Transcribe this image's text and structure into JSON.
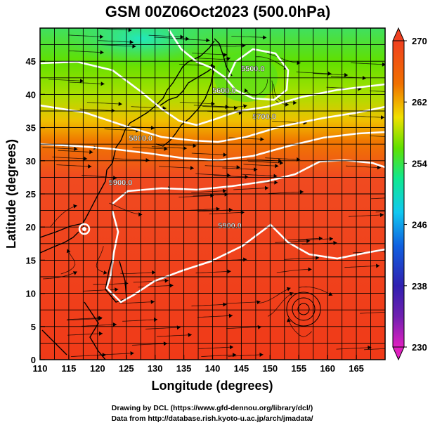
{
  "chart_data": {
    "type": "heatmap",
    "title": "GSM 00Z06Oct2023 (500.0hPa)",
    "xlabel": "Longitude (degrees)",
    "ylabel": "Latitude  (degrees)",
    "xlim": [
      110,
      170
    ],
    "ylim": [
      0,
      50
    ],
    "x_ticks": [
      "110",
      "115",
      "120",
      "125",
      "130",
      "135",
      "140",
      "145",
      "150",
      "155",
      "160",
      "165"
    ],
    "y_ticks": [
      "0",
      "5",
      "10",
      "15",
      "20",
      "25",
      "30",
      "35",
      "40",
      "45"
    ],
    "grid": true,
    "colorbar": {
      "range": [
        230,
        270
      ],
      "ticks": [
        "230",
        "238",
        "246",
        "254",
        "262",
        "270"
      ],
      "colors": [
        "#e020c0",
        "#3020b0",
        "#1060e0",
        "#10c8f0",
        "#10e890",
        "#60e000",
        "#f0e000",
        "#f07000",
        "#f04020"
      ]
    },
    "contours": [
      {
        "label": "5500.0",
        "x": 147.0,
        "y": 43.5
      },
      {
        "label": "5600.0",
        "x": 142.0,
        "y": 40.2
      },
      {
        "label": "5700.0",
        "x": 149.0,
        "y": 36.3
      },
      {
        "label": "5800.0",
        "x": 127.5,
        "y": 33.0
      },
      {
        "label": "5900.0",
        "x": 124.0,
        "y": 26.3
      },
      {
        "label": "5900.0",
        "x": 143.0,
        "y": 19.8
      }
    ]
  },
  "footer": {
    "line1": "Drawing by DCL (https://www.gfd-dennou.org/library/dcl/)",
    "line2": "Data from http://database.rish.kyoto-u.ac.jp/arch/jmadata/"
  }
}
